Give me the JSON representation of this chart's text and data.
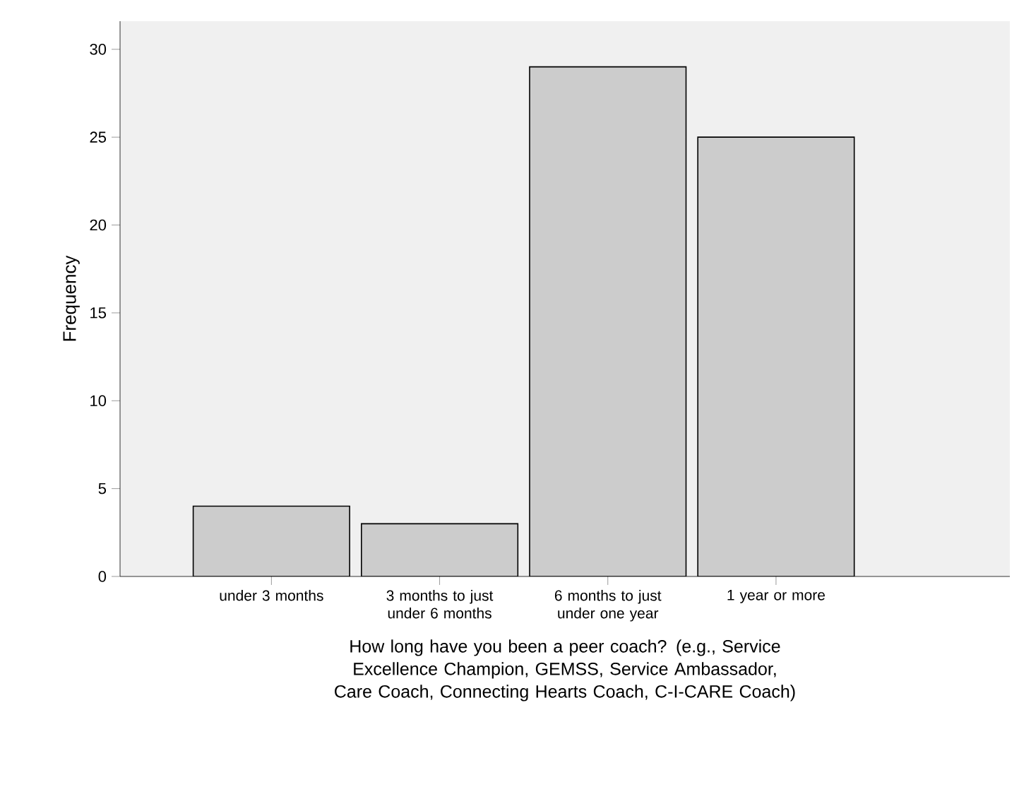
{
  "chart_data": {
    "type": "bar",
    "xlabel": "How long have you been a peer coach? (e.g., Service Excellence Champion, GEMSS, Service Ambassador, Care Coach, Connecting Hearts Coach, C-I-CARE Coach)",
    "ylabel": "Frequency",
    "categories": [
      "under 3 months",
      "3 months to just under 6 months",
      "6 months to just under one year",
      "1 year or more"
    ],
    "values": [
      4,
      3,
      29,
      25
    ],
    "color": "#cccccc",
    "ylim": [
      0,
      31.6
    ],
    "yticks": [
      0,
      5,
      10,
      15,
      20,
      25,
      30
    ],
    "grid": false
  }
}
